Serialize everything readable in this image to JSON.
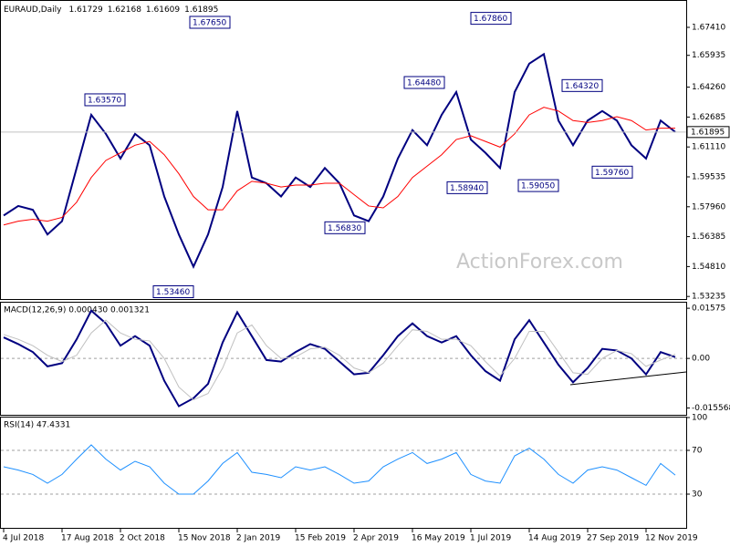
{
  "chart_data": [
    {
      "type": "line",
      "title": "EURAUD,Daily",
      "ohlc": [
        1.61729,
        1.62168,
        1.61609,
        1.61895
      ],
      "series": [
        {
          "color": "#000080",
          "values": [
            1.575,
            1.58,
            1.578,
            1.565,
            1.572,
            1.6,
            1.628,
            1.618,
            1.605,
            1.618,
            1.612,
            1.585,
            1.565,
            1.548,
            1.565,
            1.59,
            1.63,
            1.595,
            1.592,
            1.585,
            1.595,
            1.59,
            1.6,
            1.592,
            1.575,
            1.572,
            1.585,
            1.605,
            1.62,
            1.612,
            1.628,
            1.64,
            1.615,
            1.608,
            1.6,
            1.64,
            1.655,
            1.66,
            1.625,
            1.612,
            1.625,
            1.63,
            1.625,
            1.612,
            1.605,
            1.625,
            1.619
          ]
        },
        {
          "color": "#ff0000",
          "values": [
            1.57,
            1.572,
            1.573,
            1.572,
            1.574,
            1.582,
            1.595,
            1.604,
            1.608,
            1.612,
            1.614,
            1.607,
            1.597,
            1.585,
            1.578,
            1.578,
            1.588,
            1.593,
            1.592,
            1.59,
            1.591,
            1.591,
            1.592,
            1.592,
            1.586,
            1.58,
            1.579,
            1.585,
            1.595,
            1.601,
            1.607,
            1.615,
            1.617,
            1.614,
            1.611,
            1.618,
            1.628,
            1.632,
            1.63,
            1.625,
            1.624,
            1.625,
            1.627,
            1.625,
            1.62,
            1.621,
            1.621
          ]
        }
      ],
      "ylim": [
        1.531,
        1.6885
      ],
      "yticks": [
        {
          "value": 1.6741,
          "label": "1.67410"
        },
        {
          "value": 1.65935,
          "label": "1.65935"
        },
        {
          "value": 1.6426,
          "label": "1.64260"
        },
        {
          "value": 1.62685,
          "label": "1.62685"
        },
        {
          "value": 1.6111,
          "label": "1.61110"
        },
        {
          "value": 1.59535,
          "label": "1.59535"
        },
        {
          "value": 1.5796,
          "label": "1.57960"
        },
        {
          "value": 1.56385,
          "label": "1.56385"
        },
        {
          "value": 1.5481,
          "label": "1.54810"
        },
        {
          "value": 1.53235,
          "label": "1.53235"
        }
      ],
      "last_price": 1.61895,
      "annotations": [
        {
          "label": "1.63570",
          "value": 1.6357
        },
        {
          "label": "1.67650",
          "value": 1.6765
        },
        {
          "label": "1.53460",
          "value": 1.5346
        },
        {
          "label": "1.56830",
          "value": 1.5683
        },
        {
          "label": "1.64480",
          "value": 1.6448
        },
        {
          "label": "1.67860",
          "value": 1.6786
        },
        {
          "label": "1.58940",
          "value": 1.5894
        },
        {
          "label": "1.59050",
          "value": 1.5905
        },
        {
          "label": "1.64320",
          "value": 1.6432
        },
        {
          "label": "1.59760",
          "value": 1.5976
        }
      ],
      "watermark": "ActionForex.com",
      "grid": false
    },
    {
      "type": "line",
      "title": "MACD(12,26,9) 0.000430 0.001321",
      "series": [
        {
          "color": "#000080",
          "values": [
            0.0066,
            0.0045,
            0.002,
            -0.0025,
            -0.0015,
            0.006,
            0.015,
            0.011,
            0.004,
            0.007,
            0.004,
            -0.007,
            -0.015,
            -0.0125,
            -0.008,
            0.005,
            0.0145,
            0.007,
            -0.0005,
            -0.001,
            0.002,
            0.0045,
            0.003,
            -0.001,
            -0.005,
            -0.0045,
            0.001,
            0.007,
            0.011,
            0.007,
            0.005,
            0.007,
            0.001,
            -0.004,
            -0.007,
            0.006,
            0.012,
            0.005,
            -0.002,
            -0.0075,
            -0.003,
            0.003,
            0.0025,
            0.0,
            -0.005,
            0.002,
            0.00043
          ]
        },
        {
          "color": "#c0c0c0",
          "values": [
            0.0075,
            0.006,
            0.004,
            0.001,
            -0.001,
            0.001,
            0.008,
            0.012,
            0.008,
            0.006,
            0.0055,
            0.0,
            -0.009,
            -0.013,
            -0.011,
            -0.003,
            0.008,
            0.0105,
            0.004,
            0.0,
            0.0005,
            0.003,
            0.0035,
            0.001,
            -0.003,
            -0.0045,
            -0.0015,
            0.004,
            0.009,
            0.0085,
            0.006,
            0.006,
            0.004,
            -0.001,
            -0.0055,
            0.0,
            0.0085,
            0.0085,
            0.002,
            -0.0045,
            -0.005,
            0.0,
            0.0025,
            0.0015,
            -0.0025,
            -0.0005,
            0.001321
          ]
        }
      ],
      "ylim": [
        -0.0177,
        0.0175
      ],
      "yticks": [
        {
          "value": 0.01575,
          "label": "0.01575"
        },
        {
          "value": 0,
          "label": "0.00"
        },
        {
          "value": -0.015568,
          "label": "-0.015568"
        }
      ],
      "grid": true
    },
    {
      "type": "line",
      "title": "RSI(14) 47.4331",
      "series": [
        {
          "color": "#1e90ff",
          "values": [
            55,
            52,
            48,
            40,
            48,
            62,
            75,
            62,
            52,
            60,
            55,
            40,
            30,
            30,
            42,
            58,
            68,
            50,
            48,
            45,
            55,
            52,
            55,
            48,
            40,
            42,
            55,
            62,
            68,
            58,
            62,
            68,
            48,
            42,
            40,
            65,
            72,
            62,
            48,
            40,
            52,
            55,
            52,
            45,
            38,
            58,
            47.4331
          ]
        }
      ],
      "ylim": [
        0,
        100
      ],
      "yticks": [
        100,
        70,
        30
      ],
      "grid": true,
      "categories": [
        "4 Jul 2018",
        null,
        null,
        null,
        "17 Aug 2018",
        null,
        null,
        null,
        "2 Oct 2018",
        null,
        null,
        null,
        "15 Nov 2018",
        null,
        null,
        null,
        "2 Jan 2019",
        null,
        null,
        null,
        "15 Feb 2019",
        null,
        null,
        null,
        "2 Apr 2019",
        null,
        null,
        null,
        "16 May 2019",
        null,
        null,
        null,
        "1 Jul 2019",
        null,
        null,
        null,
        "14 Aug 2019",
        null,
        null,
        null,
        "27 Sep 2019",
        null,
        null,
        null,
        "12 Nov 2019",
        null,
        null
      ]
    }
  ]
}
